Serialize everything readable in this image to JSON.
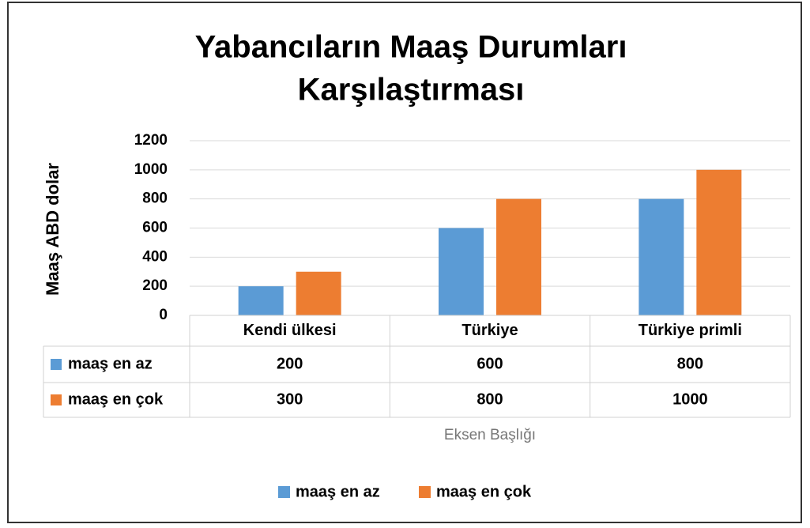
{
  "chart_data": {
    "type": "bar",
    "title": [
      "Yabancıların Maaş Durumları",
      "Karşılaştırması"
    ],
    "y_label": "Maaş ABD dolar",
    "x_label": "Eksen Başlığı",
    "categories": [
      "Kendi ülkesi",
      "Türkiye",
      "Türkiye primli"
    ],
    "series": [
      {
        "name": "maaş en az",
        "color": "#5b9bd5",
        "values": [
          200,
          600,
          800
        ]
      },
      {
        "name": "maaş en çok",
        "color": "#ed7d31",
        "values": [
          300,
          800,
          1000
        ]
      }
    ],
    "ylim": [
      0,
      1200
    ],
    "yticks": [
      0,
      200,
      400,
      600,
      800,
      1000,
      1200
    ],
    "grid": true,
    "data_table": true,
    "legend": "bottom"
  }
}
